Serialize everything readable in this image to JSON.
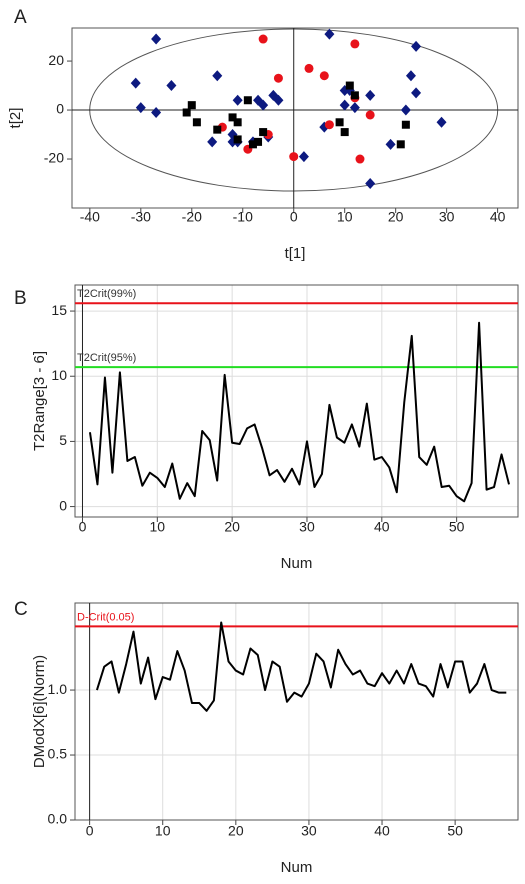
{
  "chart_data": [
    {
      "type": "scatter",
      "label": "A",
      "x_label": "t[1]",
      "y_label": "t[2]",
      "xlim": [
        -43.5,
        44
      ],
      "ylim": [
        -40,
        33.5
      ],
      "xticks": [
        -40,
        -30,
        -20,
        -10,
        0,
        10,
        20,
        30,
        40
      ],
      "yticks": [
        -20,
        0,
        20
      ],
      "grid": false,
      "series": [
        {
          "color": "#0d1a80",
          "marker": "diamond",
          "x": [
            -27,
            -31,
            -30,
            -27,
            -24,
            -15,
            -16,
            -12,
            -11,
            -11,
            -7,
            -8,
            -6,
            -4,
            -3,
            -5,
            2,
            7,
            6,
            10,
            10,
            12,
            11,
            15,
            15,
            19,
            22,
            23,
            24,
            24,
            29,
            -12
          ],
          "y": [
            29,
            11,
            1,
            -1,
            10,
            14,
            -13,
            -10,
            4,
            -13,
            4,
            -13,
            2,
            6,
            4,
            -11,
            -19,
            31,
            -7,
            2,
            8,
            1,
            8,
            6,
            -30,
            -14,
            0,
            14,
            26,
            7,
            -5,
            -13
          ]
        },
        {
          "color": "#e8121a",
          "marker": "circle",
          "x": [
            -6,
            -3,
            -14,
            -9,
            -5,
            0,
            3,
            6,
            12,
            12,
            13,
            15,
            7
          ],
          "y": [
            29,
            13,
            -7,
            -16,
            -10,
            -19,
            17,
            14,
            27,
            5,
            -20,
            -2,
            -6
          ]
        },
        {
          "color": "#000000",
          "marker": "square",
          "x": [
            -20,
            -21,
            -19,
            -15,
            -12,
            -11,
            -11,
            -9,
            -8,
            -6,
            -7,
            9,
            10,
            11,
            12,
            21,
            22
          ],
          "y": [
            2,
            -1,
            -5,
            -8,
            -3,
            -5,
            -12,
            4,
            -14,
            -9,
            -13,
            -5,
            -9,
            10,
            6,
            -14,
            -6
          ]
        }
      ]
    },
    {
      "type": "line",
      "label": "B",
      "x_label": "Num",
      "y_label": "T2Range[3 - 6]",
      "xlim": [
        -1,
        58.2
      ],
      "ylim": [
        -0.8,
        17
      ],
      "xticks": [
        0,
        10,
        20,
        30,
        40,
        50
      ],
      "yticks": [
        0,
        5,
        10,
        15
      ],
      "grid": true,
      "reference_lines": [
        {
          "name": "T2Crit(99%)",
          "value": 15.6,
          "color": "#e8121a"
        },
        {
          "name": "T2Crit(95%)",
          "value": 10.7,
          "color": "#22dd22"
        }
      ],
      "series": [
        {
          "color": "#000000",
          "x": [
            1,
            2,
            3,
            4,
            5,
            6,
            7,
            8,
            9,
            10,
            11,
            12,
            13,
            14,
            15,
            16,
            17,
            18,
            19,
            20,
            21,
            22,
            23,
            24,
            25,
            26,
            27,
            28,
            29,
            30,
            31,
            32,
            33,
            34,
            35,
            36,
            37,
            38,
            39,
            40,
            41,
            42,
            43,
            44,
            45,
            46,
            47,
            48,
            49,
            50,
            51,
            52,
            53,
            54,
            55,
            56,
            57
          ],
          "values": [
            5.7,
            1.7,
            9.9,
            2.6,
            10.3,
            3.5,
            3.8,
            1.6,
            2.6,
            2.2,
            1.5,
            3.3,
            0.6,
            1.8,
            0.8,
            5.8,
            5.1,
            2.0,
            10.1,
            4.9,
            4.8,
            6.0,
            6.3,
            4.5,
            2.4,
            2.8,
            1.9,
            2.9,
            1.7,
            5.0,
            1.5,
            2.5,
            7.8,
            5.3,
            4.9,
            6.3,
            4.6,
            7.9,
            3.6,
            3.8,
            3.0,
            1.1,
            8.0,
            13.1,
            3.8,
            3.2,
            4.6,
            1.5,
            1.6,
            0.8,
            0.4,
            1.8,
            14.1,
            1.3,
            1.5,
            4.0,
            1.7
          ]
        }
      ]
    },
    {
      "type": "line",
      "label": "C",
      "x_label": "Num",
      "y_label": "DModX[6](Norm)",
      "xlim": [
        -2,
        58.6
      ],
      "ylim": [
        0,
        1.67
      ],
      "xticks": [
        0,
        10,
        20,
        30,
        40,
        50
      ],
      "yticks": [
        {
          "value": 0,
          "label": "0.0"
        },
        {
          "value": 0.5,
          "label": "0.5"
        },
        {
          "value": 1,
          "label": "1.0"
        }
      ],
      "grid": true,
      "reference_lines": [
        {
          "name": "D-Crit(0.05)",
          "value": 1.49,
          "color": "#e8121a"
        }
      ],
      "series": [
        {
          "color": "#000000",
          "x": [
            1,
            2,
            3,
            4,
            5,
            6,
            7,
            8,
            9,
            10,
            11,
            12,
            13,
            14,
            15,
            16,
            17,
            18,
            19,
            20,
            21,
            22,
            23,
            24,
            25,
            26,
            27,
            28,
            29,
            30,
            31,
            32,
            33,
            34,
            35,
            36,
            37,
            38,
            39,
            40,
            41,
            42,
            43,
            44,
            45,
            46,
            47,
            48,
            49,
            50,
            51,
            52,
            53,
            54,
            55,
            56,
            57
          ],
          "values": [
            1.0,
            1.18,
            1.22,
            0.98,
            1.2,
            1.45,
            1.05,
            1.25,
            0.93,
            1.1,
            1.08,
            1.3,
            1.15,
            0.9,
            0.9,
            0.84,
            0.92,
            1.52,
            1.22,
            1.15,
            1.12,
            1.32,
            1.27,
            1.0,
            1.22,
            1.18,
            0.91,
            0.98,
            0.95,
            1.05,
            1.28,
            1.22,
            1.02,
            1.31,
            1.2,
            1.12,
            1.15,
            1.05,
            1.03,
            1.13,
            1.05,
            1.15,
            1.05,
            1.2,
            1.05,
            1.03,
            0.95,
            1.2,
            1.02,
            1.22,
            1.22,
            0.98,
            1.05,
            1.2,
            1.0,
            0.98,
            0.98
          ]
        }
      ]
    }
  ]
}
